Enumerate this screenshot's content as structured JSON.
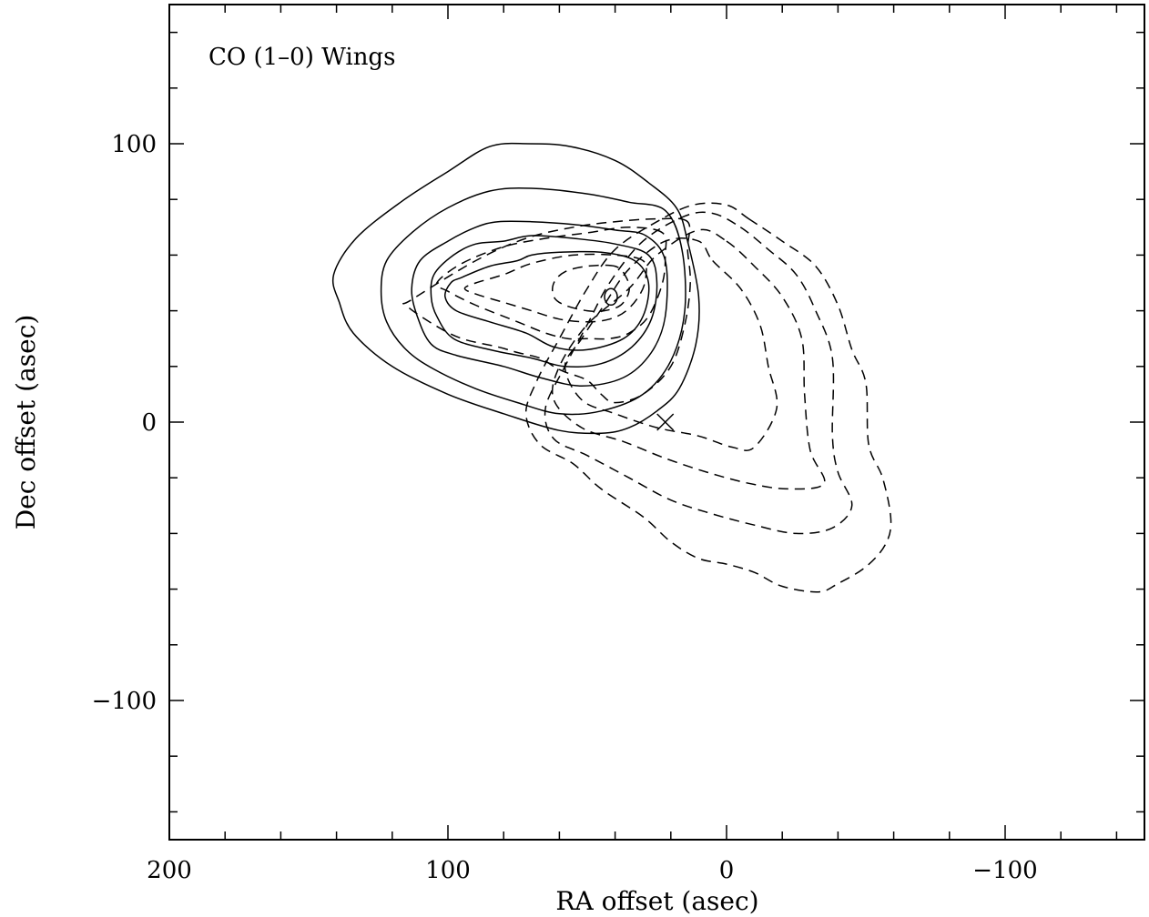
{
  "chart_data": {
    "type": "contour",
    "title": "CO (1–0) Wings",
    "xlabel": "RA offset (asec)",
    "ylabel": "Dec offset (asec)",
    "xlim": [
      200,
      -150
    ],
    "ylim": [
      -150,
      150
    ],
    "x_reversed": true,
    "grid": false,
    "xticks_major": [
      200,
      100,
      0,
      -100
    ],
    "xtick_labels": [
      "200",
      "100",
      "0",
      "−100"
    ],
    "yticks_major": [
      -100,
      0,
      100
    ],
    "ytick_labels": [
      "−100",
      "0",
      "100"
    ],
    "markers": [
      {
        "name": "circle",
        "x": 41.5,
        "y": 45
      },
      {
        "name": "cross",
        "x": 22,
        "y": 0
      }
    ],
    "series": [
      {
        "line_style": "solid",
        "contours": [
          [
            [
              71,
              100
            ],
            [
              56,
              99
            ],
            [
              40,
              94
            ],
            [
              28,
              86
            ],
            [
              18,
              77
            ],
            [
              14,
              65
            ],
            [
              10,
              45
            ],
            [
              11,
              28
            ],
            [
              17,
              12
            ],
            [
              25,
              4
            ],
            [
              35,
              -2
            ],
            [
              45,
              -4
            ],
            [
              60,
              -3
            ],
            [
              80,
              3
            ],
            [
              100,
              10
            ],
            [
              120,
              20
            ],
            [
              134,
              32
            ],
            [
              139,
              43
            ],
            [
              141,
              53
            ],
            [
              133,
              66
            ],
            [
              117,
              79
            ],
            [
              100,
              90
            ],
            [
              85,
              99
            ],
            [
              71,
              100
            ]
          ],
          [
            [
              85,
              83
            ],
            [
              70,
              84
            ],
            [
              50,
              82
            ],
            [
              35,
              79
            ],
            [
              22,
              76
            ],
            [
              16,
              62
            ],
            [
              15,
              40
            ],
            [
              20,
              22
            ],
            [
              30,
              10
            ],
            [
              45,
              4
            ],
            [
              60,
              3
            ],
            [
              75,
              7
            ],
            [
              90,
              12
            ],
            [
              105,
              19
            ],
            [
              115,
              26
            ],
            [
              122,
              36
            ],
            [
              124,
              47
            ],
            [
              122,
              58
            ],
            [
              113,
              68
            ],
            [
              100,
              77
            ],
            [
              85,
              83
            ]
          ],
          [
            [
              82,
              72
            ],
            [
              70,
              72
            ],
            [
              55,
              71
            ],
            [
              40,
              69
            ],
            [
              29,
              67
            ],
            [
              22,
              58
            ],
            [
              22,
              38
            ],
            [
              27,
              25
            ],
            [
              37,
              16
            ],
            [
              52,
              13
            ],
            [
              67,
              16
            ],
            [
              80,
              20
            ],
            [
              97,
              24
            ],
            [
              106,
              28
            ],
            [
              111,
              38
            ],
            [
              113,
              48
            ],
            [
              110,
              58
            ],
            [
              100,
              65
            ],
            [
              90,
              70
            ],
            [
              82,
              72
            ]
          ],
          [
            [
              80,
              65
            ],
            [
              70,
              67
            ],
            [
              55,
              66
            ],
            [
              40,
              64
            ],
            [
              28,
              60
            ],
            [
              25,
              50
            ],
            [
              27,
              37
            ],
            [
              34,
              27
            ],
            [
              45,
              21
            ],
            [
              58,
              20
            ],
            [
              70,
              23
            ],
            [
              85,
              26
            ],
            [
              98,
              30
            ],
            [
              104,
              38
            ],
            [
              106,
              45
            ],
            [
              105,
              53
            ],
            [
              98,
              60
            ],
            [
              90,
              64
            ],
            [
              80,
              65
            ]
          ],
          [
            [
              70,
              60
            ],
            [
              60,
              61
            ],
            [
              45,
              61
            ],
            [
              33,
              58
            ],
            [
              28,
              50
            ],
            [
              30,
              38
            ],
            [
              37,
              30
            ],
            [
              50,
              26
            ],
            [
              62,
              27
            ],
            [
              72,
              32
            ],
            [
              85,
              36
            ],
            [
              97,
              40
            ],
            [
              101,
              45
            ],
            [
              99,
              50
            ],
            [
              95,
              52
            ],
            [
              85,
              56
            ],
            [
              75,
              58
            ],
            [
              70,
              60
            ]
          ]
        ]
      },
      {
        "line_style": "dashed",
        "contours": [
          [
            [
              -8,
              73
            ],
            [
              -20,
              65
            ],
            [
              -32,
              56
            ],
            [
              -40,
              42
            ],
            [
              -45,
              26
            ],
            [
              -50,
              14
            ],
            [
              -51,
              -8
            ],
            [
              -56,
              -20
            ],
            [
              -59,
              -35
            ],
            [
              -57,
              -44
            ],
            [
              -50,
              -52
            ],
            [
              -40,
              -58
            ],
            [
              -33,
              -61
            ],
            [
              -20,
              -59
            ],
            [
              -10,
              -54
            ],
            [
              0,
              -51
            ],
            [
              10,
              -49
            ],
            [
              20,
              -43
            ],
            [
              30,
              -34
            ],
            [
              45,
              -24
            ],
            [
              55,
              -15
            ],
            [
              67,
              -8
            ],
            [
              72,
              3
            ],
            [
              68,
              15
            ],
            [
              60,
              30
            ],
            [
              50,
              48
            ],
            [
              40,
              62
            ],
            [
              25,
              72
            ],
            [
              12,
              78
            ],
            [
              0,
              78
            ],
            [
              -8,
              73
            ]
          ],
          [
            [
              -5,
              70
            ],
            [
              -15,
              62
            ],
            [
              -25,
              53
            ],
            [
              -32,
              40
            ],
            [
              -38,
              23
            ],
            [
              -38,
              -5
            ],
            [
              -40,
              -18
            ],
            [
              -45,
              -30
            ],
            [
              -38,
              -38
            ],
            [
              -25,
              -40
            ],
            [
              -10,
              -37
            ],
            [
              5,
              -33
            ],
            [
              20,
              -28
            ],
            [
              35,
              -20
            ],
            [
              50,
              -12
            ],
            [
              62,
              -6
            ],
            [
              65,
              5
            ],
            [
              58,
              20
            ],
            [
              50,
              35
            ],
            [
              42,
              50
            ],
            [
              30,
              65
            ],
            [
              15,
              74
            ],
            [
              5,
              75
            ],
            [
              -5,
              70
            ]
          ],
          [
            [
              0,
              65
            ],
            [
              -10,
              56
            ],
            [
              -20,
              45
            ],
            [
              -27,
              30
            ],
            [
              -28,
              10
            ],
            [
              -30,
              -10
            ],
            [
              -35,
              -22
            ],
            [
              -22,
              -24
            ],
            [
              -8,
              -22
            ],
            [
              7,
              -18
            ],
            [
              22,
              -13
            ],
            [
              37,
              -7
            ],
            [
              52,
              -2
            ],
            [
              62,
              8
            ],
            [
              60,
              20
            ],
            [
              50,
              35
            ],
            [
              35,
              48
            ],
            [
              25,
              60
            ],
            [
              10,
              69
            ],
            [
              0,
              65
            ]
          ],
          [
            [
              5,
              58
            ],
            [
              -5,
              48
            ],
            [
              -12,
              35
            ],
            [
              -15,
              20
            ],
            [
              -18,
              5
            ],
            [
              -10,
              -9
            ],
            [
              -2,
              -9
            ],
            [
              10,
              -5
            ],
            [
              25,
              -2
            ],
            [
              40,
              3
            ],
            [
              52,
              8
            ],
            [
              58,
              20
            ],
            [
              52,
              30
            ],
            [
              44,
              42
            ],
            [
              35,
              55
            ],
            [
              22,
              65
            ],
            [
              10,
              65
            ],
            [
              5,
              58
            ]
          ],
          [
            [
              14,
              72
            ],
            [
              25,
              73
            ],
            [
              40,
              72
            ],
            [
              55,
              70
            ],
            [
              72,
              66
            ],
            [
              90,
              58
            ],
            [
              113,
              44
            ],
            [
              115,
              42
            ],
            [
              105,
              35
            ],
            [
              95,
              30
            ],
            [
              82,
              27
            ],
            [
              75,
              25
            ],
            [
              67,
              23
            ],
            [
              62,
              20
            ],
            [
              58,
              18
            ],
            [
              50,
              15
            ],
            [
              45,
              10
            ],
            [
              40,
              7
            ],
            [
              30,
              10
            ],
            [
              20,
              20
            ],
            [
              15,
              35
            ],
            [
              13,
              50
            ],
            [
              14,
              62
            ],
            [
              14,
              72
            ]
          ],
          [
            [
              23,
              68
            ],
            [
              35,
              70
            ],
            [
              50,
              68
            ],
            [
              65,
              66
            ],
            [
              80,
              63
            ],
            [
              95,
              57
            ],
            [
              104,
              50
            ],
            [
              100,
              47
            ],
            [
              90,
              42
            ],
            [
              75,
              36
            ],
            [
              65,
              32
            ],
            [
              57,
              30
            ],
            [
              50,
              30
            ],
            [
              42,
              30
            ],
            [
              35,
              32
            ],
            [
              28,
              38
            ],
            [
              23,
              50
            ],
            [
              22,
              60
            ],
            [
              23,
              68
            ]
          ],
          [
            [
              30,
              58
            ],
            [
              40,
              60
            ],
            [
              55,
              60
            ],
            [
              70,
              57
            ],
            [
              80,
              53
            ],
            [
              90,
              50
            ],
            [
              94,
              48
            ],
            [
              90,
              46
            ],
            [
              80,
              43
            ],
            [
              70,
              40
            ],
            [
              60,
              37
            ],
            [
              50,
              36
            ],
            [
              42,
              37
            ],
            [
              36,
              40
            ],
            [
              31,
              46
            ],
            [
              29,
              52
            ],
            [
              30,
              58
            ]
          ],
          [
            [
              40,
              56
            ],
            [
              50,
              56
            ],
            [
              58,
              54
            ],
            [
              62,
              50
            ],
            [
              62,
              45
            ],
            [
              58,
              42
            ],
            [
              50,
              40
            ],
            [
              44,
              40
            ],
            [
              38,
              42
            ],
            [
              35,
              47
            ],
            [
              36,
              52
            ],
            [
              40,
              56
            ]
          ]
        ]
      }
    ]
  }
}
